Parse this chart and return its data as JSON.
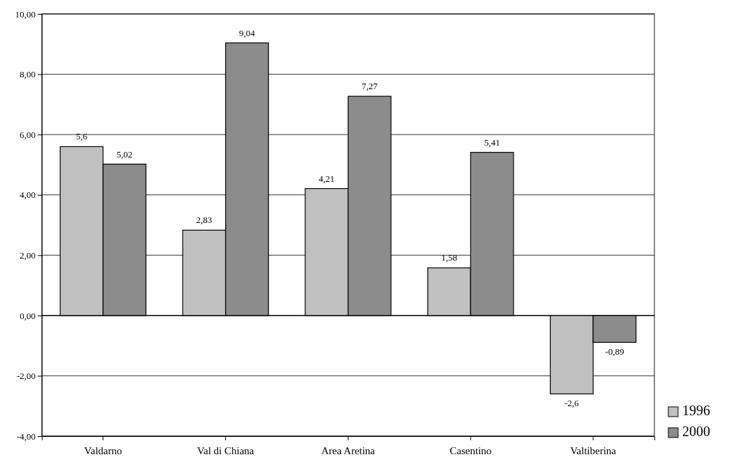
{
  "chart_data": {
    "type": "bar",
    "categories": [
      "Valdarno",
      "Val di Chiana",
      "Area Aretina",
      "Casentino",
      "Valtiberina"
    ],
    "series": [
      {
        "name": "1996",
        "color": "#c0c0c0",
        "values": [
          5.6,
          2.83,
          4.21,
          1.58,
          -2.6
        ],
        "value_labels": [
          "5,6",
          "2,83",
          "4,21",
          "1,58",
          "-2,6"
        ]
      },
      {
        "name": "2000",
        "color": "#8c8c8c",
        "values": [
          5.02,
          9.04,
          7.27,
          5.41,
          -0.89
        ],
        "value_labels": [
          "5,02",
          "9,04",
          "7,27",
          "5,41",
          "-0,89"
        ]
      }
    ],
    "ylim": [
      -4,
      10
    ],
    "yticks": [
      {
        "value": -4,
        "label": "-4,00"
      },
      {
        "value": -2,
        "label": "-2,00"
      },
      {
        "value": 0,
        "label": "0,00"
      },
      {
        "value": 2,
        "label": "2,00"
      },
      {
        "value": 4,
        "label": "4,00"
      },
      {
        "value": 6,
        "label": "6,00"
      },
      {
        "value": 8,
        "label": "8,00"
      },
      {
        "value": 10,
        "label": "10,00"
      }
    ],
    "grid": "y",
    "legend": "bottom right"
  }
}
